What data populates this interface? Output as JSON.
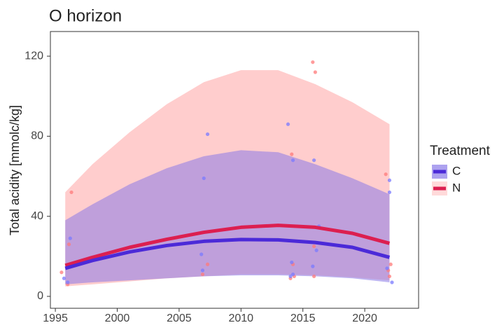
{
  "chart_data": {
    "type": "smooth-scatter",
    "title": "O horizon",
    "y_label": "Total acidity [mmolc/kg]",
    "legend_title": "Treatment",
    "legend_position": "right",
    "xlim": [
      1994.6,
      2024.35
    ],
    "xticks": [
      1995,
      2000,
      2005,
      2010,
      2015,
      2020
    ],
    "ylim": [
      -5.95,
      132.3
    ],
    "yticks": [
      0,
      40,
      80,
      120
    ],
    "grid": false,
    "series": [
      {
        "name": "C",
        "color": "#4b2ad8",
        "band_color": "#8a7ae8",
        "point_color": "#7a7aff",
        "x": [
          1995.8,
          1998,
          2001,
          2004,
          2007,
          2010,
          2013,
          2016,
          2019,
          2022
        ],
        "values": [
          14,
          17.9,
          22.2,
          25.4,
          27.5,
          28.4,
          28.2,
          26.9,
          24.5,
          19.5
        ],
        "lower": [
          6,
          7,
          8,
          9,
          10,
          10.5,
          10.5,
          10,
          9,
          7
        ],
        "upper": [
          38,
          46,
          56,
          64,
          70,
          73,
          72,
          66,
          59,
          51
        ],
        "points_x": [
          1995.7,
          1996,
          1996.2,
          2006.8,
          2006.9,
          2007,
          2007.3,
          2013.8,
          2014.1,
          2014.2,
          2014.2,
          2015.8,
          2015.9,
          2016.1,
          2016.3,
          2021.8,
          2022,
          2022,
          2022.2,
          2014
        ],
        "points_y": [
          9,
          7,
          29,
          21,
          13,
          59,
          81,
          86,
          17,
          68,
          11,
          15,
          68,
          23,
          35,
          14,
          58,
          52,
          7,
          10
        ]
      },
      {
        "name": "N",
        "color": "#dc1f50",
        "band_color": "#ffcaca",
        "point_color": "#ff7a7a",
        "x": [
          1995.8,
          1998,
          2001,
          2004,
          2007,
          2010,
          2013,
          2016,
          2019,
          2022
        ],
        "values": [
          15.5,
          19.5,
          24.5,
          28.5,
          32,
          34.5,
          35.5,
          34.5,
          31.5,
          26.5
        ],
        "lower": [
          5,
          6,
          7.5,
          9,
          10,
          11,
          11,
          10.5,
          9.5,
          8
        ],
        "upper": [
          52,
          66,
          82,
          96,
          107,
          113,
          113,
          106,
          97,
          86
        ],
        "points_x": [
          1995.5,
          1996,
          1996.1,
          1996.3,
          2006.9,
          2007.3,
          2014,
          2014.1,
          2014.3,
          2014.2,
          2015.8,
          2015.9,
          2016,
          2015.9,
          2021.7,
          2022,
          2022.1,
          2021.9
        ],
        "points_y": [
          12,
          6,
          26,
          52,
          11,
          16,
          9,
          71,
          10,
          16,
          117,
          10,
          112,
          25,
          61,
          10,
          16,
          13
        ]
      }
    ]
  }
}
